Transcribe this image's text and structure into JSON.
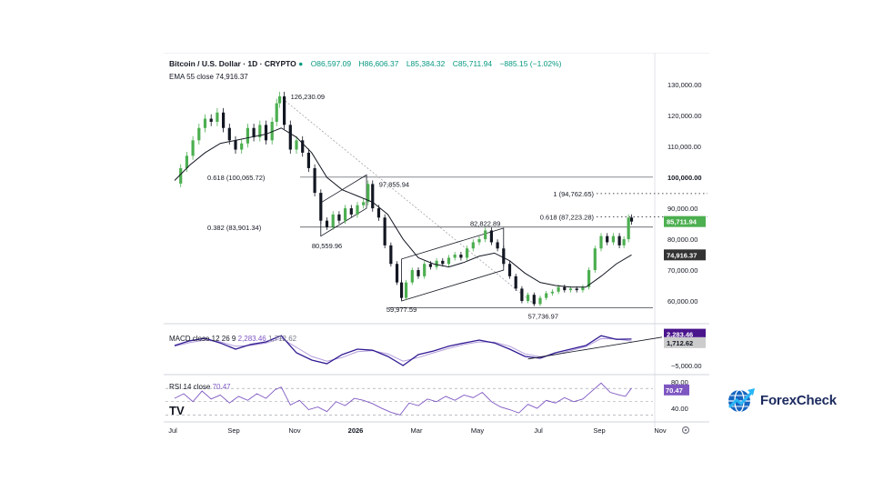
{
  "chart_data": {
    "type": "candlestick",
    "symbol": "Bitcoin / U.S. Dollar · 1D · CRYPTO",
    "ohlc": {
      "open": "O86,597.09",
      "high": "H86,606.37",
      "low": "L85,384.32",
      "close": "C85,711.94",
      "change": "−885.15 (−1.02%)"
    },
    "ema_label": "EMA 55 close",
    "ema_value": "74,916.37",
    "price_axis": {
      "labels": [
        "130,000.00",
        "120,000.00",
        "110,000.00",
        "100,000.00",
        "90,000.00",
        "80,000.00",
        "70,000.00",
        "60,000.00"
      ],
      "values": [
        130000,
        120000,
        110000,
        100000,
        90000,
        80000,
        70000,
        60000
      ],
      "range": [
        55000,
        138000
      ]
    },
    "last_price_tag": {
      "label": "85,711.94",
      "value": 85711.94,
      "color": "#4caf50"
    },
    "ema_tag": {
      "label": "74,916.37",
      "value": 74916.37,
      "color": "#333333"
    },
    "x_axis": {
      "labels": [
        "Jul",
        "Sep",
        "Nov",
        "2026",
        "Mar",
        "May",
        "Jul",
        "Sep",
        "Nov"
      ],
      "positions": [
        0,
        2,
        4,
        6,
        8,
        10,
        12,
        14,
        16
      ]
    },
    "price_series_close": [
      [
        0,
        98000
      ],
      [
        0.2,
        103000
      ],
      [
        0.4,
        107000
      ],
      [
        0.6,
        112000
      ],
      [
        0.8,
        116000
      ],
      [
        1.0,
        119000
      ],
      [
        1.2,
        118000
      ],
      [
        1.4,
        121000
      ],
      [
        1.6,
        116000
      ],
      [
        1.8,
        112000
      ],
      [
        2.0,
        109000
      ],
      [
        2.2,
        111000
      ],
      [
        2.4,
        116000
      ],
      [
        2.6,
        113000
      ],
      [
        2.8,
        117000
      ],
      [
        3.0,
        112000
      ],
      [
        3.2,
        118000
      ],
      [
        3.35,
        124000
      ],
      [
        3.45,
        126230
      ],
      [
        3.6,
        117000
      ],
      [
        3.8,
        109000
      ],
      [
        4.0,
        112000
      ],
      [
        4.2,
        108000
      ],
      [
        4.4,
        103000
      ],
      [
        4.6,
        95000
      ],
      [
        4.8,
        86000
      ],
      [
        5.0,
        84000
      ],
      [
        5.2,
        88000
      ],
      [
        5.4,
        86000
      ],
      [
        5.6,
        90000
      ],
      [
        5.8,
        88000
      ],
      [
        6.0,
        91000
      ],
      [
        6.2,
        92000
      ],
      [
        6.35,
        97855
      ],
      [
        6.5,
        90000
      ],
      [
        6.7,
        87000
      ],
      [
        6.9,
        78000
      ],
      [
        7.1,
        72000
      ],
      [
        7.3,
        66000
      ],
      [
        7.45,
        61000
      ],
      [
        7.6,
        66000
      ],
      [
        7.8,
        70000
      ],
      [
        8.0,
        68000
      ],
      [
        8.2,
        72000
      ],
      [
        8.4,
        71000
      ],
      [
        8.6,
        73000
      ],
      [
        8.8,
        72000
      ],
      [
        9.0,
        74000
      ],
      [
        9.2,
        75000
      ],
      [
        9.4,
        74000
      ],
      [
        9.6,
        77000
      ],
      [
        9.8,
        79000
      ],
      [
        10.0,
        80000
      ],
      [
        10.2,
        82822
      ],
      [
        10.4,
        79000
      ],
      [
        10.6,
        77000
      ],
      [
        10.8,
        72000
      ],
      [
        11.0,
        68000
      ],
      [
        11.2,
        64000
      ],
      [
        11.4,
        60000
      ],
      [
        11.6,
        62000
      ],
      [
        11.8,
        59000
      ],
      [
        12.0,
        61000
      ],
      [
        12.2,
        62500
      ],
      [
        12.4,
        63000
      ],
      [
        12.6,
        64500
      ],
      [
        12.8,
        63500
      ],
      [
        13.0,
        64000
      ],
      [
        13.2,
        63500
      ],
      [
        13.4,
        64500
      ],
      [
        13.6,
        70000
      ],
      [
        13.8,
        77000
      ],
      [
        14.0,
        81000
      ],
      [
        14.2,
        79000
      ],
      [
        14.4,
        81000
      ],
      [
        14.6,
        78000
      ],
      [
        14.75,
        80000
      ],
      [
        14.9,
        87000
      ],
      [
        15.0,
        85711
      ]
    ],
    "ema_series": [
      [
        0,
        99000
      ],
      [
        0.5,
        104000
      ],
      [
        1.0,
        108000
      ],
      [
        1.5,
        111000
      ],
      [
        2.0,
        112000
      ],
      [
        2.5,
        113000
      ],
      [
        3.0,
        114000
      ],
      [
        3.5,
        116000
      ],
      [
        4.0,
        113000
      ],
      [
        4.5,
        108000
      ],
      [
        5.0,
        100000
      ],
      [
        5.5,
        96000
      ],
      [
        6.0,
        94000
      ],
      [
        6.5,
        92000
      ],
      [
        7.0,
        88000
      ],
      [
        7.5,
        80000
      ],
      [
        8.0,
        74000
      ],
      [
        8.5,
        72000
      ],
      [
        9.0,
        71000
      ],
      [
        9.5,
        72500
      ],
      [
        10.0,
        74500
      ],
      [
        10.5,
        75500
      ],
      [
        11.0,
        73000
      ],
      [
        11.5,
        69000
      ],
      [
        12.0,
        66000
      ],
      [
        12.5,
        65000
      ],
      [
        13.0,
        64500
      ],
      [
        13.5,
        64500
      ],
      [
        14.0,
        68000
      ],
      [
        14.5,
        72000
      ],
      [
        15.0,
        74916
      ]
    ],
    "horizontal_levels": [
      {
        "label": "0.618 (100,065.72)",
        "value": 100065.72
      },
      {
        "label": "0.382 (83,901.34)",
        "value": 83901.34
      },
      {
        "label": "",
        "value": 57736.97
      }
    ],
    "projection_levels": [
      {
        "label": "1 (94,762.65)",
        "value": 94762.65
      },
      {
        "label": "0.618 (87,223.28)",
        "value": 87223.28
      }
    ],
    "point_annotations": [
      {
        "label": "126,230.09",
        "x": 3.45,
        "y": 126230.09,
        "pos": "right"
      },
      {
        "label": "97,855.94",
        "x": 6.35,
        "y": 97855.94,
        "pos": "right"
      },
      {
        "label": "80,559.96",
        "x": 5.0,
        "y": 80559.96,
        "pos": "below"
      },
      {
        "label": "82,822.89",
        "x": 10.2,
        "y": 82822.89,
        "pos": "above"
      },
      {
        "label": "59,977.59",
        "x": 7.45,
        "y": 59977.59,
        "pos": "below"
      },
      {
        "label": "57,736.97",
        "x": 12.1,
        "y": 57736.97,
        "pos": "below"
      }
    ],
    "channels": [
      {
        "p1": [
          4.8,
          81000
        ],
        "p2": [
          6.3,
          90000
        ],
        "p3": [
          5.5,
          96000
        ]
      },
      {
        "p1": [
          7.45,
          60000
        ],
        "p2": [
          10.8,
          70000
        ],
        "p3": [
          9.6,
          80000
        ]
      }
    ],
    "trendline_dotted": {
      "from": [
        3.45,
        126230
      ],
      "to": [
        11.8,
        59000
      ]
    },
    "macd": {
      "label": "MACD close 12 26 9",
      "value1": "2,283.46",
      "value2": "1,712.62",
      "axis_label": "−5,000.00",
      "axis_value": -5000,
      "range": [
        -7000,
        6000
      ],
      "tag1_color": "#4a148c",
      "tag2_color": "#cccccc",
      "series": [
        [
          0,
          500
        ],
        [
          0.5,
          1800
        ],
        [
          1.0,
          2500
        ],
        [
          1.5,
          1200
        ],
        [
          2.0,
          -500
        ],
        [
          2.5,
          800
        ],
        [
          3.0,
          1500
        ],
        [
          3.5,
          3200
        ],
        [
          4.0,
          -1500
        ],
        [
          4.5,
          -3500
        ],
        [
          5.0,
          -4500
        ],
        [
          5.5,
          -2000
        ],
        [
          6.0,
          -500
        ],
        [
          6.5,
          -800
        ],
        [
          7.0,
          -2500
        ],
        [
          7.5,
          -5000
        ],
        [
          8.0,
          -2000
        ],
        [
          8.5,
          -1000
        ],
        [
          9.0,
          300
        ],
        [
          9.5,
          1200
        ],
        [
          10.0,
          2000
        ],
        [
          10.5,
          1200
        ],
        [
          11.0,
          -500
        ],
        [
          11.5,
          -2500
        ],
        [
          12.0,
          -3000
        ],
        [
          12.5,
          -1500
        ],
        [
          13.0,
          -500
        ],
        [
          13.5,
          500
        ],
        [
          14.0,
          3200
        ],
        [
          14.5,
          2200
        ],
        [
          15.0,
          2283
        ]
      ],
      "signal": [
        [
          0,
          300
        ],
        [
          0.5,
          1300
        ],
        [
          1.0,
          2000
        ],
        [
          1.5,
          1500
        ],
        [
          2.0,
          300
        ],
        [
          2.5,
          500
        ],
        [
          3.0,
          1200
        ],
        [
          3.5,
          2500
        ],
        [
          4.0,
          0
        ],
        [
          4.5,
          -2500
        ],
        [
          5.0,
          -3800
        ],
        [
          5.5,
          -2800
        ],
        [
          6.0,
          -1200
        ],
        [
          6.5,
          -900
        ],
        [
          7.0,
          -1800
        ],
        [
          7.5,
          -3800
        ],
        [
          8.0,
          -2800
        ],
        [
          8.5,
          -1500
        ],
        [
          9.0,
          -300
        ],
        [
          9.5,
          800
        ],
        [
          10.0,
          1500
        ],
        [
          10.5,
          1400
        ],
        [
          11.0,
          300
        ],
        [
          11.5,
          -1800
        ],
        [
          12.0,
          -2600
        ],
        [
          12.5,
          -2000
        ],
        [
          13.0,
          -900
        ],
        [
          13.5,
          200
        ],
        [
          14.0,
          2400
        ],
        [
          14.5,
          2300
        ],
        [
          15.0,
          1712
        ]
      ],
      "trendline": {
        "from": [
          11.6,
          -3200
        ],
        "to": [
          16.0,
          2800
        ]
      }
    },
    "rsi": {
      "label": "RSI 14 close",
      "value": "70.47",
      "tick_labels": [
        "80.00",
        "40.00"
      ],
      "tick_values": [
        80,
        40
      ],
      "range": [
        25,
        88
      ],
      "levels": [
        70,
        50,
        30
      ],
      "series": [
        [
          0,
          55
        ],
        [
          0.3,
          62
        ],
        [
          0.6,
          50
        ],
        [
          0.9,
          66
        ],
        [
          1.2,
          54
        ],
        [
          1.5,
          60
        ],
        [
          1.8,
          48
        ],
        [
          2.1,
          58
        ],
        [
          2.4,
          52
        ],
        [
          2.7,
          62
        ],
        [
          3.0,
          55
        ],
        [
          3.3,
          68
        ],
        [
          3.5,
          72
        ],
        [
          3.8,
          45
        ],
        [
          4.1,
          52
        ],
        [
          4.4,
          38
        ],
        [
          4.7,
          42
        ],
        [
          5.0,
          35
        ],
        [
          5.3,
          50
        ],
        [
          5.6,
          44
        ],
        [
          5.9,
          55
        ],
        [
          6.2,
          52
        ],
        [
          6.5,
          47
        ],
        [
          6.8,
          40
        ],
        [
          7.1,
          34
        ],
        [
          7.4,
          30
        ],
        [
          7.7,
          48
        ],
        [
          8.0,
          44
        ],
        [
          8.3,
          54
        ],
        [
          8.6,
          50
        ],
        [
          8.9,
          58
        ],
        [
          9.2,
          52
        ],
        [
          9.5,
          60
        ],
        [
          9.8,
          56
        ],
        [
          10.1,
          64
        ],
        [
          10.4,
          50
        ],
        [
          10.7,
          42
        ],
        [
          11.0,
          38
        ],
        [
          11.3,
          33
        ],
        [
          11.6,
          46
        ],
        [
          11.9,
          40
        ],
        [
          12.2,
          52
        ],
        [
          12.5,
          48
        ],
        [
          12.8,
          56
        ],
        [
          13.1,
          50
        ],
        [
          13.4,
          54
        ],
        [
          13.7,
          66
        ],
        [
          14.0,
          78
        ],
        [
          14.3,
          64
        ],
        [
          14.6,
          60
        ],
        [
          14.8,
          58
        ],
        [
          15.0,
          70.47
        ]
      ]
    },
    "gear_icon": "gear-icon"
  },
  "brand": {
    "name": "ForexCheck",
    "logo_icon": "globe-arrow-icon"
  },
  "tv_logo": "TV"
}
